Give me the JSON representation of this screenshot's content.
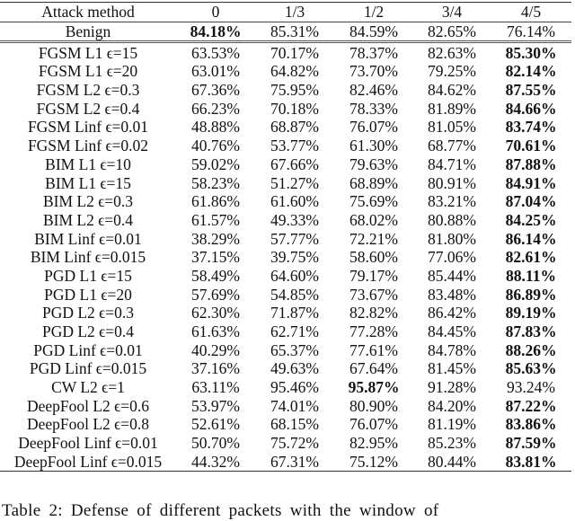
{
  "table": {
    "columns": [
      "Attack method",
      "0",
      "1/3",
      "1/2",
      "3/4",
      "4/5"
    ],
    "rows": [
      {
        "method": "Benign",
        "values": [
          "84.18%",
          "85.31%",
          "84.59%",
          "82.65%",
          "76.14%"
        ],
        "bold": [
          0
        ]
      },
      {
        "method": "FGSM L1 ϵ=15",
        "values": [
          "63.53%",
          "70.17%",
          "78.37%",
          "82.63%",
          "85.30%"
        ],
        "bold": [
          4
        ]
      },
      {
        "method": "FGSM L1 ϵ=20",
        "values": [
          "63.01%",
          "64.82%",
          "73.70%",
          "79.25%",
          "82.14%"
        ],
        "bold": [
          4
        ]
      },
      {
        "method": "FGSM L2 ϵ=0.3",
        "values": [
          "67.36%",
          "75.95%",
          "82.46%",
          "84.62%",
          "87.55%"
        ],
        "bold": [
          4
        ]
      },
      {
        "method": "FGSM L2 ϵ=0.4",
        "values": [
          "66.23%",
          "70.18%",
          "78.33%",
          "81.89%",
          "84.66%"
        ],
        "bold": [
          4
        ]
      },
      {
        "method": "FGSM Linf ϵ=0.01",
        "values": [
          "48.88%",
          "68.87%",
          "76.07%",
          "81.05%",
          "83.74%"
        ],
        "bold": [
          4
        ]
      },
      {
        "method": "FGSM Linf ϵ=0.02",
        "values": [
          "40.76%",
          "53.77%",
          "61.30%",
          "68.77%",
          "70.61%"
        ],
        "bold": [
          4
        ]
      },
      {
        "method": "BIM L1 ϵ=10",
        "values": [
          "59.02%",
          "67.66%",
          "79.63%",
          "84.71%",
          "87.88%"
        ],
        "bold": [
          4
        ]
      },
      {
        "method": "BIM L1 ϵ=15",
        "values": [
          "58.23%",
          "51.27%",
          "68.89%",
          "80.91%",
          "84.91%"
        ],
        "bold": [
          4
        ]
      },
      {
        "method": "BIM L2 ϵ=0.3",
        "values": [
          "61.86%",
          "61.60%",
          "75.69%",
          "83.21%",
          "87.04%"
        ],
        "bold": [
          4
        ]
      },
      {
        "method": "BIM L2 ϵ=0.4",
        "values": [
          "61.57%",
          "49.33%",
          "68.02%",
          "80.88%",
          "84.25%"
        ],
        "bold": [
          4
        ]
      },
      {
        "method": "BIM Linf ϵ=0.01",
        "values": [
          "38.29%",
          "57.77%",
          "72.21%",
          "81.80%",
          "86.14%"
        ],
        "bold": [
          4
        ]
      },
      {
        "method": "BIM Linf ϵ=0.015",
        "values": [
          "37.15%",
          "39.75%",
          "58.60%",
          "77.06%",
          "82.61%"
        ],
        "bold": [
          4
        ]
      },
      {
        "method": "PGD L1 ϵ=15",
        "values": [
          "58.49%",
          "64.60%",
          "79.17%",
          "85.44%",
          "88.11%"
        ],
        "bold": [
          4
        ]
      },
      {
        "method": "PGD L1 ϵ=20",
        "values": [
          "57.69%",
          "54.85%",
          "73.67%",
          "83.48%",
          "86.89%"
        ],
        "bold": [
          4
        ]
      },
      {
        "method": "PGD L2 ϵ=0.3",
        "values": [
          "62.30%",
          "71.87%",
          "82.82%",
          "86.42%",
          "89.19%"
        ],
        "bold": [
          4
        ]
      },
      {
        "method": "PGD L2 ϵ=0.4",
        "values": [
          "61.63%",
          "62.71%",
          "77.28%",
          "84.45%",
          "87.83%"
        ],
        "bold": [
          4
        ]
      },
      {
        "method": "PGD Linf ϵ=0.01",
        "values": [
          "40.29%",
          "65.37%",
          "77.61%",
          "84.78%",
          "88.26%"
        ],
        "bold": [
          4
        ]
      },
      {
        "method": "PGD Linf ϵ=0.015",
        "values": [
          "37.16%",
          "49.63%",
          "67.64%",
          "81.45%",
          "85.63%"
        ],
        "bold": [
          4
        ]
      },
      {
        "method": "CW L2 ϵ=1",
        "values": [
          "63.11%",
          "95.46%",
          "95.87%",
          "91.28%",
          "93.24%"
        ],
        "bold": [
          2
        ]
      },
      {
        "method": "DeepFool L2 ϵ=0.6",
        "values": [
          "53.97%",
          "74.01%",
          "80.90%",
          "84.20%",
          "87.22%"
        ],
        "bold": [
          4
        ]
      },
      {
        "method": "DeepFool L2 ϵ=0.8",
        "values": [
          "52.61%",
          "68.15%",
          "76.07%",
          "81.19%",
          "83.86%"
        ],
        "bold": [
          4
        ]
      },
      {
        "method": "DeepFool Linf ϵ=0.01",
        "values": [
          "50.70%",
          "75.72%",
          "82.95%",
          "85.23%",
          "87.59%"
        ],
        "bold": [
          4
        ]
      },
      {
        "method": "DeepFool Linf ϵ=0.015",
        "values": [
          "44.32%",
          "67.31%",
          "75.12%",
          "80.44%",
          "83.81%"
        ],
        "bold": [
          4
        ]
      }
    ]
  },
  "caption": "Table 2: Defense of different packets with the window of"
}
